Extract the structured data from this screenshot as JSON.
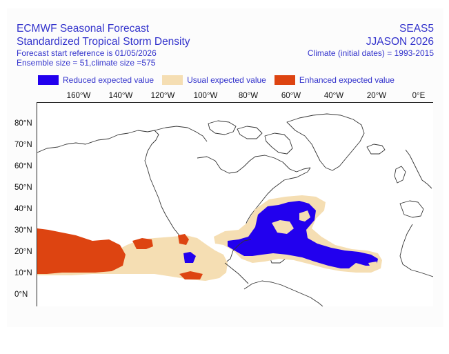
{
  "header": {
    "title": "ECMWF Seasonal Forecast",
    "subtitle": "Standardized Tropical Storm Density",
    "start_ref": "Forecast start reference is 01/05/2026",
    "ensemble": "Ensemble size = 51,climate size =575",
    "system": "SEAS5",
    "period": "JJASON 2026",
    "climate": "Climate (initial dates) = 1993-2015"
  },
  "legend": [
    {
      "label": "Reduced expected value",
      "color": "#2200ee"
    },
    {
      "label": "Usual expected value",
      "color": "#f5deb3"
    },
    {
      "label": "Enhanced expected value",
      "color": "#dd4411"
    }
  ],
  "axes": {
    "lon_labels": [
      "160°W",
      "140°W",
      "120°W",
      "100°W",
      "80°W",
      "60°W",
      "40°W",
      "20°W",
      "0°E"
    ],
    "lat_labels": [
      "80°N",
      "70°N",
      "60°N",
      "50°N",
      "40°N",
      "30°N",
      "20°N",
      "10°N",
      "0°N"
    ]
  },
  "map": {
    "land_outline_color": "#333333",
    "ocean_color": "#ffffff"
  }
}
